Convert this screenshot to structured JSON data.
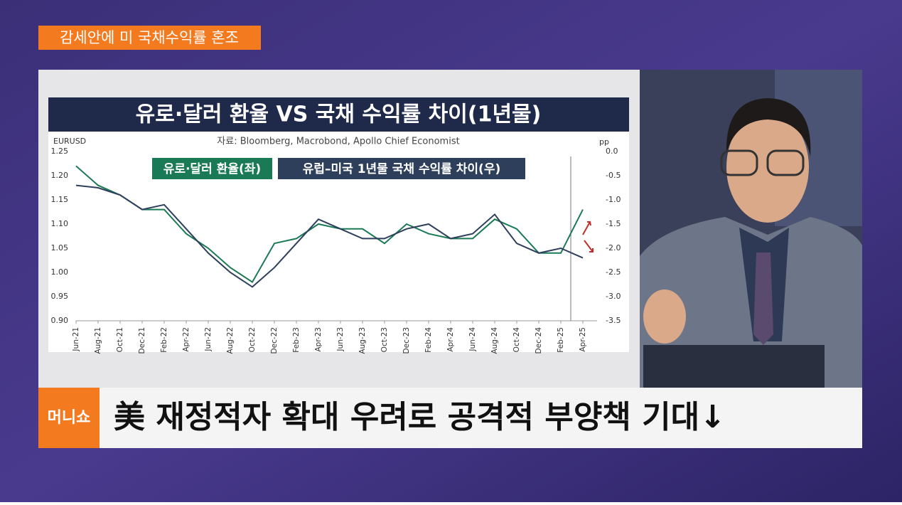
{
  "header": {
    "tag": "감세안에 미 국채수익률 혼조"
  },
  "chart_data": {
    "type": "line",
    "title": "유로·달러 환율 VS 국채 수익률 차이(1년물)",
    "subtitle": "자료: Bloomberg, Macrobond, Apollo Chief Economist",
    "y_label": "EURUSD",
    "y2_label": "pp",
    "categories": [
      "Jun-21",
      "Aug-21",
      "Oct-21",
      "Dec-21",
      "Feb-22",
      "Apr-22",
      "Jun-22",
      "Aug-22",
      "Oct-22",
      "Dec-22",
      "Feb-23",
      "Apr-23",
      "Jun-23",
      "Aug-23",
      "Oct-23",
      "Dec-23",
      "Feb-24",
      "Apr-24",
      "Jun-24",
      "Aug-24",
      "Oct-24",
      "Dec-24",
      "Feb-25",
      "Apr-25"
    ],
    "series": [
      {
        "name": "유로·달러 환율(좌)",
        "color": "#1a7a55",
        "axis": "y",
        "values": [
          1.22,
          1.18,
          1.16,
          1.13,
          1.13,
          1.08,
          1.05,
          1.01,
          0.98,
          1.06,
          1.07,
          1.1,
          1.09,
          1.09,
          1.06,
          1.1,
          1.08,
          1.07,
          1.07,
          1.11,
          1.09,
          1.04,
          1.04,
          1.13
        ]
      },
      {
        "name": "유럽–미국 1년물 국채 수익률 차이(우)",
        "color": "#2e3f5c",
        "axis": "y2",
        "values": [
          -0.7,
          -0.75,
          -0.9,
          -1.2,
          -1.1,
          -1.6,
          -2.1,
          -2.5,
          -2.8,
          -2.4,
          -1.9,
          -1.4,
          -1.6,
          -1.8,
          -1.8,
          -1.6,
          -1.5,
          -1.8,
          -1.7,
          -1.3,
          -1.9,
          -2.1,
          -2.0,
          -2.2
        ]
      }
    ],
    "ylim": [
      0.9,
      1.25
    ],
    "yticks": [
      {
        "value": 0.9,
        "label": "0.90"
      },
      0.95,
      {
        "value": 1,
        "label": "1.00"
      },
      1.05,
      {
        "value": 1.1,
        "label": "1.10"
      },
      1.15,
      {
        "value": 1.2,
        "label": "1.20"
      },
      1.25
    ],
    "y2lim": [
      -3.5,
      0
    ],
    "y2ticks": [
      {
        "value": 0,
        "label": "0.0"
      },
      -0.5,
      {
        "value": -1,
        "label": "-1.0"
      },
      -1.5,
      {
        "value": -2,
        "label": "-2.0"
      },
      -2.5,
      {
        "value": -3,
        "label": "-3.0"
      },
      -3.5
    ],
    "grid": false
  },
  "caption": {
    "logo": "머니쇼",
    "text": "美 재정적자 확대 우려로 공격적 부양책 기대↓"
  }
}
